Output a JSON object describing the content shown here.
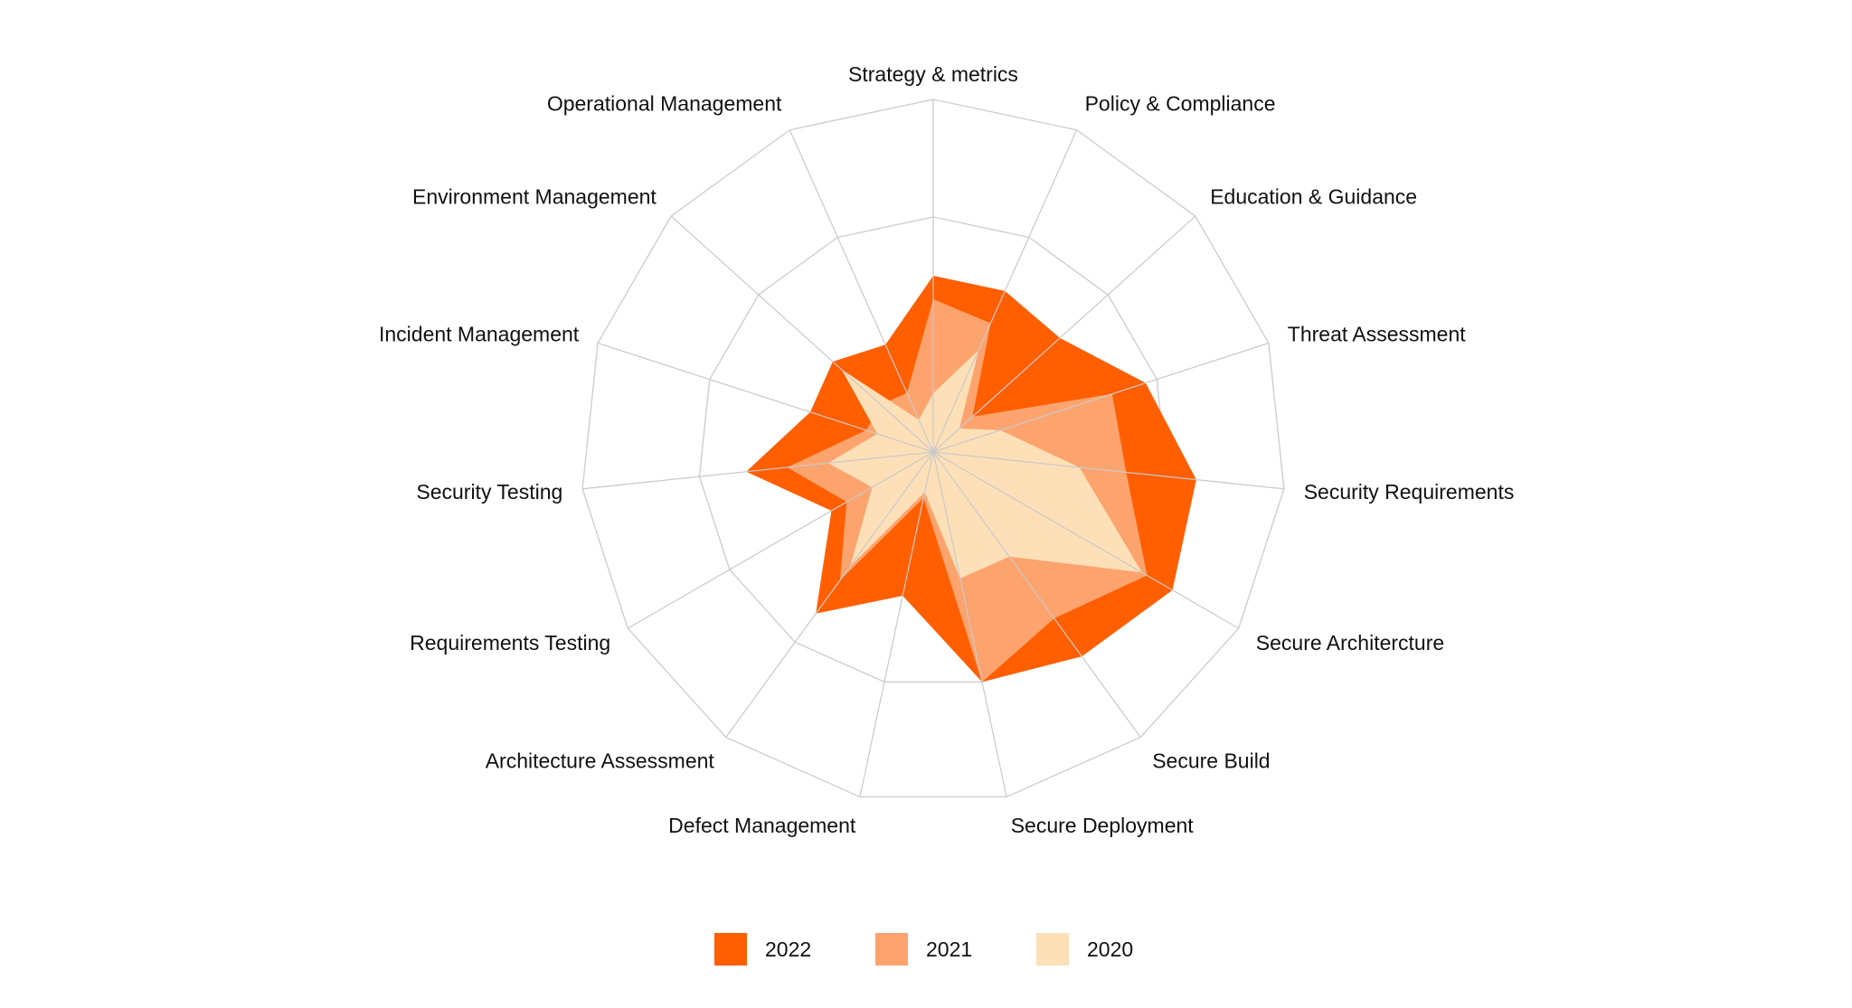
{
  "chart_data": {
    "type": "radar",
    "title": "",
    "axes": [
      "Strategy & metrics",
      "Policy & Compliance",
      "Education & Guidance",
      "Threat Assessment",
      "Security Requirements",
      "Secure Architercture",
      "Secure Build",
      "Secure Deployment",
      "Defect Management",
      "Architecture Assessment",
      "Requirements Testing",
      "Security Testing",
      "Incident Management",
      "Environment Management",
      "Operational Management"
    ],
    "range": [
      0,
      3
    ],
    "rings": 3,
    "grid": true,
    "legend_position": "bottom-center",
    "series": [
      {
        "name": "2022",
        "color": "#ff5f00",
        "values": [
          1.5,
          1.5,
          1.45,
          1.9,
          2.25,
          2.35,
          2.15,
          2.0,
          1.25,
          1.7,
          1.0,
          1.6,
          1.1,
          1.15,
          1.0
        ]
      },
      {
        "name": "2021",
        "color": "#fda46e",
        "values": [
          1.3,
          1.2,
          0.45,
          1.6,
          1.65,
          2.1,
          1.75,
          2.0,
          0.4,
          1.35,
          0.85,
          1.25,
          0.6,
          0.6,
          0.55
        ]
      },
      {
        "name": "2020",
        "color": "#fde0b8",
        "values": [
          0.5,
          0.95,
          0.3,
          0.6,
          1.25,
          2.05,
          1.1,
          1.1,
          0.35,
          1.2,
          0.6,
          0.9,
          0.5,
          1.05,
          0.3
        ]
      }
    ]
  }
}
